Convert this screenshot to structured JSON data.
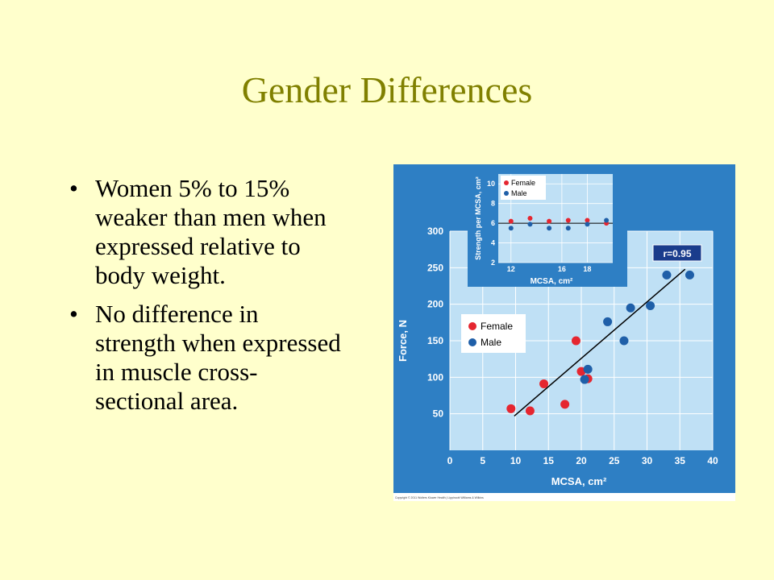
{
  "slide": {
    "title": "Gender Differences",
    "bullets": [
      "Women 5% to 15% weaker than men when expressed relative to body weight.",
      "No difference in strength when expressed in muscle cross-sectional area."
    ]
  },
  "colors": {
    "background": "#ffffcc",
    "title": "#808000",
    "chart_bg": "#2e7fc4",
    "plot_bg": "#bfe0f5",
    "female": "#e52630",
    "male": "#1f5fa8",
    "annotation_box": "#1a3c8c"
  },
  "chart_data": [
    {
      "type": "scatter",
      "xlabel": "MCSA, cm²",
      "ylabel": "Force, N",
      "xlim": [
        0,
        40
      ],
      "ylim": [
        0,
        300
      ],
      "xticks": [
        0,
        5,
        10,
        15,
        20,
        25,
        30,
        35,
        40
      ],
      "yticks": [
        50,
        100,
        150,
        200,
        250,
        300
      ],
      "grid": true,
      "legend": [
        "Female",
        "Male"
      ],
      "legend_position": "left-middle",
      "annotation": "r=0.95",
      "trendline": {
        "x": [
          9.8,
          35.8
        ],
        "y": [
          47,
          248
        ]
      },
      "series": [
        {
          "name": "Female",
          "color": "#e52630",
          "points": [
            [
              9.3,
              57
            ],
            [
              12.2,
              54
            ],
            [
              14.3,
              91
            ],
            [
              17.5,
              63
            ],
            [
              19.2,
              150
            ],
            [
              20.0,
              108
            ],
            [
              21.0,
              98
            ]
          ]
        },
        {
          "name": "Male",
          "color": "#1f5fa8",
          "points": [
            [
              20.5,
              97
            ],
            [
              21.0,
              111
            ],
            [
              24.0,
              176
            ],
            [
              26.5,
              150
            ],
            [
              27.5,
              195
            ],
            [
              30.5,
              198
            ],
            [
              33.0,
              240
            ],
            [
              36.5,
              240
            ]
          ]
        }
      ],
      "footer": "Copyright © 2011 Wolters Kluwer Health | Lippincott Williams & Wilkins"
    },
    {
      "type": "scatter",
      "xlabel": "MCSA, cm²",
      "ylabel": "Strength per MCSA, cm²",
      "xlim": [
        11,
        20
      ],
      "ylim": [
        2,
        11
      ],
      "xticks": [
        12,
        16,
        18
      ],
      "yticks": [
        2,
        4,
        6,
        8,
        10
      ],
      "reference_line": 6,
      "grid": true,
      "legend": [
        "Female",
        "Male"
      ],
      "legend_position": "top-left",
      "series": [
        {
          "name": "Female",
          "color": "#e52630",
          "points": [
            [
              12.0,
              6.2
            ],
            [
              13.5,
              6.5
            ],
            [
              15.0,
              6.2
            ],
            [
              16.5,
              6.3
            ],
            [
              18.0,
              6.3
            ],
            [
              19.5,
              6.0
            ]
          ]
        },
        {
          "name": "Male",
          "color": "#1f5fa8",
          "points": [
            [
              12.0,
              5.5
            ],
            [
              13.5,
              5.9
            ],
            [
              15.0,
              5.5
            ],
            [
              16.5,
              5.5
            ],
            [
              18.0,
              5.9
            ],
            [
              19.5,
              6.3
            ]
          ]
        }
      ]
    }
  ]
}
